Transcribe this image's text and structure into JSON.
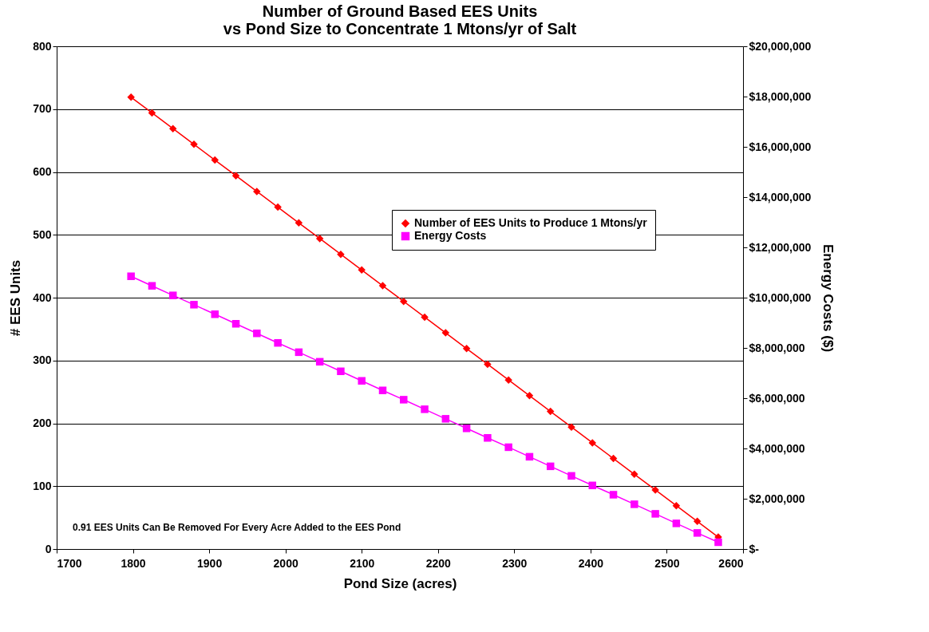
{
  "chart_data": {
    "type": "line",
    "title": "Number of Ground Based EES Units\nvs Pond Size to Concentrate 1 Mtons/yr of Salt",
    "xlabel": "Pond Size (acres)",
    "ylabel": "# EES Units",
    "y2label": "Energy Costs ($)",
    "x": [
      1797.5,
      1825,
      1852.5,
      1880,
      1907.5,
      1935,
      1962.5,
      1990,
      2017.5,
      2045,
      2072.5,
      2100,
      2127.5,
      2155,
      2182.5,
      2210,
      2237.5,
      2265,
      2292.5,
      2320,
      2347.5,
      2375,
      2402.5,
      2430,
      2457.5,
      2485,
      2512.5,
      2540,
      2567.5
    ],
    "series": [
      {
        "name": "Number of EES Units to Produce 1 Mtons/yr",
        "color": "#ff0000",
        "marker": "diamond",
        "values": [
          719,
          694,
          669,
          644,
          619,
          594,
          569,
          544,
          519,
          494,
          469,
          444,
          419,
          394,
          369,
          344,
          319,
          294,
          269,
          244,
          219,
          194,
          169,
          144,
          119,
          94,
          69,
          44,
          19
        ]
      },
      {
        "name": "Energy Costs",
        "color": "#ff00ff",
        "marker": "square",
        "axis": "y2",
        "values": [
          10850000,
          10470000,
          10090000,
          9720000,
          9340000,
          8960000,
          8580000,
          8200000,
          7830000,
          7450000,
          7070000,
          6690000,
          6310000,
          5940000,
          5560000,
          5180000,
          4800000,
          4420000,
          4050000,
          3670000,
          3290000,
          2910000,
          2530000,
          2160000,
          1780000,
          1400000,
          1020000,
          640000,
          270000
        ]
      }
    ],
    "xlim": [
      1700,
      2600
    ],
    "xticks": [
      1700,
      1800,
      1900,
      2000,
      2100,
      2200,
      2300,
      2400,
      2500,
      2600
    ],
    "ylim": [
      0,
      800
    ],
    "yticks": [
      0,
      100,
      200,
      300,
      400,
      500,
      600,
      700,
      800
    ],
    "y2lim": [
      0,
      20000000
    ],
    "y2ticks": [
      {
        "value": 0,
        "label": "$-"
      },
      {
        "value": 2000000,
        "label": "$2,000,000"
      },
      {
        "value": 4000000,
        "label": "$4,000,000"
      },
      {
        "value": 6000000,
        "label": "$6,000,000"
      },
      {
        "value": 8000000,
        "label": "$8,000,000"
      },
      {
        "value": 10000000,
        "label": "$10,000,000"
      },
      {
        "value": 12000000,
        "label": "$12,000,000"
      },
      {
        "value": 14000000,
        "label": "$14,000,000"
      },
      {
        "value": 16000000,
        "label": "$16,000,000"
      },
      {
        "value": 18000000,
        "label": "$18,000,000"
      },
      {
        "value": 20000000,
        "label": "$20,000,000"
      }
    ],
    "grid": "y",
    "legend": "right",
    "line_style": "solid",
    "annotations": [
      "0.91 EES Units Can Be Removed For Every Acre Added to the EES Pond"
    ]
  }
}
